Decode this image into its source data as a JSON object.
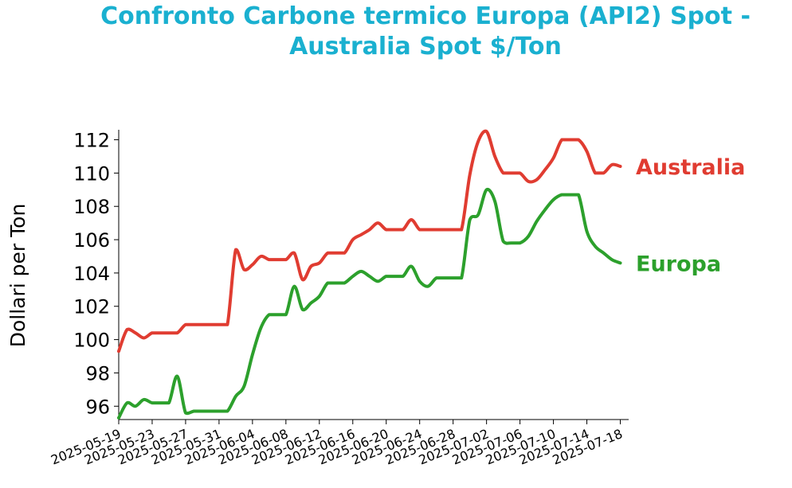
{
  "chart_data": {
    "type": "line",
    "title": [
      "Confronto Carbone termico Europa (API2) Spot -",
      "Australia Spot $/Ton"
    ],
    "title_color": "#1ab0d0",
    "ylabel": "Dollari per Ton",
    "xlabel": "",
    "ylim": [
      95.2,
      112.6
    ],
    "yticks": [
      96,
      98,
      100,
      102,
      104,
      106,
      108,
      110,
      112
    ],
    "x_range": [
      "2025-05-19",
      "2025-07-19"
    ],
    "xticks": [
      "2025-05-19",
      "2025-05-23",
      "2025-05-27",
      "2025-05-31",
      "2025-06-04",
      "2025-06-08",
      "2025-06-12",
      "2025-06-16",
      "2025-06-20",
      "2025-06-24",
      "2025-06-28",
      "2025-07-02",
      "2025-07-06",
      "2025-07-10",
      "2025-07-14",
      "2025-07-18"
    ],
    "grid": false,
    "series": [
      {
        "name": "Australia",
        "color": "#e03c31",
        "points": [
          [
            "2025-05-19",
            99.3
          ],
          [
            "2025-05-20",
            100.6
          ],
          [
            "2025-05-21",
            100.4
          ],
          [
            "2025-05-22",
            100.1
          ],
          [
            "2025-05-23",
            100.4
          ],
          [
            "2025-05-24",
            100.4
          ],
          [
            "2025-05-25",
            100.4
          ],
          [
            "2025-05-26",
            100.4
          ],
          [
            "2025-05-27",
            100.9
          ],
          [
            "2025-05-28",
            100.9
          ],
          [
            "2025-05-29",
            100.9
          ],
          [
            "2025-05-30",
            100.9
          ],
          [
            "2025-05-31",
            100.9
          ],
          [
            "2025-06-01",
            100.9
          ],
          [
            "2025-06-02",
            105.4
          ],
          [
            "2025-06-03",
            104.2
          ],
          [
            "2025-06-04",
            104.5
          ],
          [
            "2025-06-05",
            105.0
          ],
          [
            "2025-06-06",
            104.8
          ],
          [
            "2025-06-07",
            104.8
          ],
          [
            "2025-06-08",
            104.8
          ],
          [
            "2025-06-09",
            105.2
          ],
          [
            "2025-06-10",
            103.6
          ],
          [
            "2025-06-11",
            104.4
          ],
          [
            "2025-06-12",
            104.6
          ],
          [
            "2025-06-13",
            105.2
          ],
          [
            "2025-06-14",
            105.2
          ],
          [
            "2025-06-15",
            105.2
          ],
          [
            "2025-06-16",
            106.0
          ],
          [
            "2025-06-17",
            106.3
          ],
          [
            "2025-06-18",
            106.6
          ],
          [
            "2025-06-19",
            107.0
          ],
          [
            "2025-06-20",
            106.6
          ],
          [
            "2025-06-21",
            106.6
          ],
          [
            "2025-06-22",
            106.6
          ],
          [
            "2025-06-23",
            107.2
          ],
          [
            "2025-06-24",
            106.6
          ],
          [
            "2025-06-25",
            106.6
          ],
          [
            "2025-06-26",
            106.6
          ],
          [
            "2025-06-27",
            106.6
          ],
          [
            "2025-06-28",
            106.6
          ],
          [
            "2025-06-29",
            106.6
          ],
          [
            "2025-06-30",
            109.9
          ],
          [
            "2025-07-01",
            111.9
          ],
          [
            "2025-07-02",
            112.5
          ],
          [
            "2025-07-03",
            111.0
          ],
          [
            "2025-07-04",
            110.0
          ],
          [
            "2025-07-05",
            110.0
          ],
          [
            "2025-07-06",
            110.0
          ],
          [
            "2025-07-07",
            109.5
          ],
          [
            "2025-07-08",
            109.6
          ],
          [
            "2025-07-09",
            110.2
          ],
          [
            "2025-07-10",
            110.9
          ],
          [
            "2025-07-11",
            112.0
          ],
          [
            "2025-07-12",
            112.0
          ],
          [
            "2025-07-13",
            112.0
          ],
          [
            "2025-07-14",
            111.3
          ],
          [
            "2025-07-15",
            110.0
          ],
          [
            "2025-07-16",
            110.0
          ],
          [
            "2025-07-17",
            110.5
          ],
          [
            "2025-07-18",
            110.4
          ]
        ]
      },
      {
        "name": "Europa",
        "color": "#2ca02c",
        "points": [
          [
            "2025-05-19",
            95.3
          ],
          [
            "2025-05-20",
            96.2
          ],
          [
            "2025-05-21",
            96.0
          ],
          [
            "2025-05-22",
            96.4
          ],
          [
            "2025-05-23",
            96.2
          ],
          [
            "2025-05-24",
            96.2
          ],
          [
            "2025-05-25",
            96.2
          ],
          [
            "2025-05-26",
            97.8
          ],
          [
            "2025-05-27",
            95.6
          ],
          [
            "2025-05-28",
            95.7
          ],
          [
            "2025-05-29",
            95.7
          ],
          [
            "2025-05-30",
            95.7
          ],
          [
            "2025-05-31",
            95.7
          ],
          [
            "2025-06-01",
            95.7
          ],
          [
            "2025-06-02",
            96.6
          ],
          [
            "2025-06-03",
            97.2
          ],
          [
            "2025-06-04",
            99.1
          ],
          [
            "2025-06-05",
            100.7
          ],
          [
            "2025-06-06",
            101.5
          ],
          [
            "2025-06-07",
            101.5
          ],
          [
            "2025-06-08",
            101.5
          ],
          [
            "2025-06-09",
            103.2
          ],
          [
            "2025-06-10",
            101.8
          ],
          [
            "2025-06-11",
            102.2
          ],
          [
            "2025-06-12",
            102.6
          ],
          [
            "2025-06-13",
            103.4
          ],
          [
            "2025-06-14",
            103.4
          ],
          [
            "2025-06-15",
            103.4
          ],
          [
            "2025-06-16",
            103.8
          ],
          [
            "2025-06-17",
            104.1
          ],
          [
            "2025-06-18",
            103.8
          ],
          [
            "2025-06-19",
            103.5
          ],
          [
            "2025-06-20",
            103.8
          ],
          [
            "2025-06-21",
            103.8
          ],
          [
            "2025-06-22",
            103.8
          ],
          [
            "2025-06-23",
            104.4
          ],
          [
            "2025-06-24",
            103.5
          ],
          [
            "2025-06-25",
            103.2
          ],
          [
            "2025-06-26",
            103.7
          ],
          [
            "2025-06-27",
            103.7
          ],
          [
            "2025-06-28",
            103.7
          ],
          [
            "2025-06-29",
            103.7
          ],
          [
            "2025-06-30",
            107.2
          ],
          [
            "2025-07-01",
            107.5
          ],
          [
            "2025-07-02",
            109.0
          ],
          [
            "2025-07-03",
            108.3
          ],
          [
            "2025-07-04",
            105.9
          ],
          [
            "2025-07-05",
            105.8
          ],
          [
            "2025-07-06",
            105.8
          ],
          [
            "2025-07-07",
            106.2
          ],
          [
            "2025-07-08",
            107.1
          ],
          [
            "2025-07-09",
            107.8
          ],
          [
            "2025-07-10",
            108.4
          ],
          [
            "2025-07-11",
            108.7
          ],
          [
            "2025-07-12",
            108.7
          ],
          [
            "2025-07-13",
            108.7
          ],
          [
            "2025-07-14",
            106.5
          ],
          [
            "2025-07-15",
            105.6
          ],
          [
            "2025-07-16",
            105.2
          ],
          [
            "2025-07-17",
            104.8
          ],
          [
            "2025-07-18",
            104.6
          ]
        ]
      }
    ]
  }
}
